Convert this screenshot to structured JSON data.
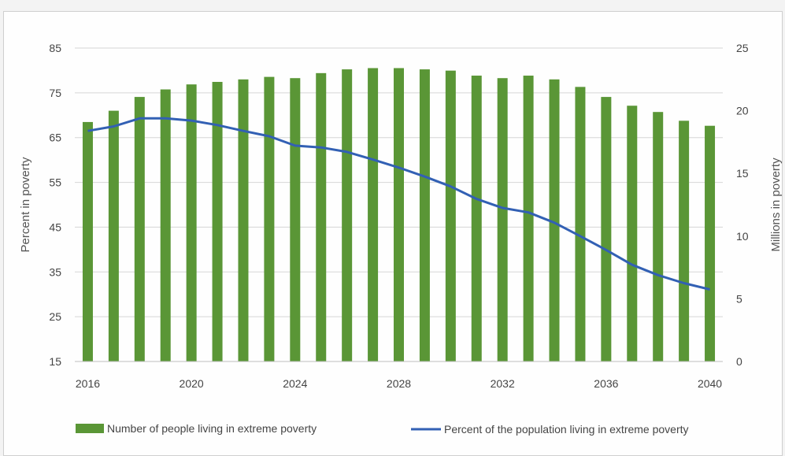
{
  "chart_data": {
    "type": "bar+line",
    "title": "",
    "xlabel": "",
    "ylabel_left": "Percent in poverty",
    "ylabel_right": "Millions in poverty",
    "x": [
      2016,
      2017,
      2018,
      2019,
      2020,
      2021,
      2022,
      2023,
      2024,
      2025,
      2026,
      2027,
      2028,
      2029,
      2030,
      2031,
      2032,
      2033,
      2034,
      2035,
      2036,
      2037,
      2038,
      2039,
      2040
    ],
    "x_tick_labels": [
      "2016",
      "2020",
      "2024",
      "2028",
      "2032",
      "2036",
      "2040"
    ],
    "ylim_left": [
      15,
      85
    ],
    "yticks_left": [
      "15",
      "25",
      "35",
      "45",
      "55",
      "65",
      "75",
      "85"
    ],
    "ylim_right": [
      0,
      25
    ],
    "yticks_right": [
      "0",
      "5",
      "10",
      "15",
      "20",
      "25"
    ],
    "series": [
      {
        "name": "Number of people living in extreme poverty",
        "type": "bar",
        "axis": "right",
        "color": "#5a9636",
        "values": [
          19.1,
          20.0,
          21.1,
          21.7,
          22.1,
          22.3,
          22.5,
          22.7,
          22.6,
          23.0,
          23.3,
          23.4,
          23.4,
          23.3,
          23.2,
          22.8,
          22.6,
          22.8,
          22.5,
          21.9,
          21.1,
          20.4,
          19.9,
          19.2,
          18.8
        ]
      },
      {
        "name": "Percent of the population living in extreme poverty",
        "type": "line",
        "axis": "left",
        "color": "#3260b4",
        "values": [
          66.5,
          67.5,
          69.3,
          69.3,
          68.8,
          67.8,
          66.5,
          65.3,
          63.2,
          62.8,
          61.8,
          60.1,
          58.3,
          56.3,
          54.1,
          51.3,
          49.3,
          48.3,
          46.0,
          43.0,
          39.9,
          36.6,
          34.3,
          32.5,
          31.1
        ]
      }
    ],
    "legend_position": "bottom",
    "grid": true
  }
}
